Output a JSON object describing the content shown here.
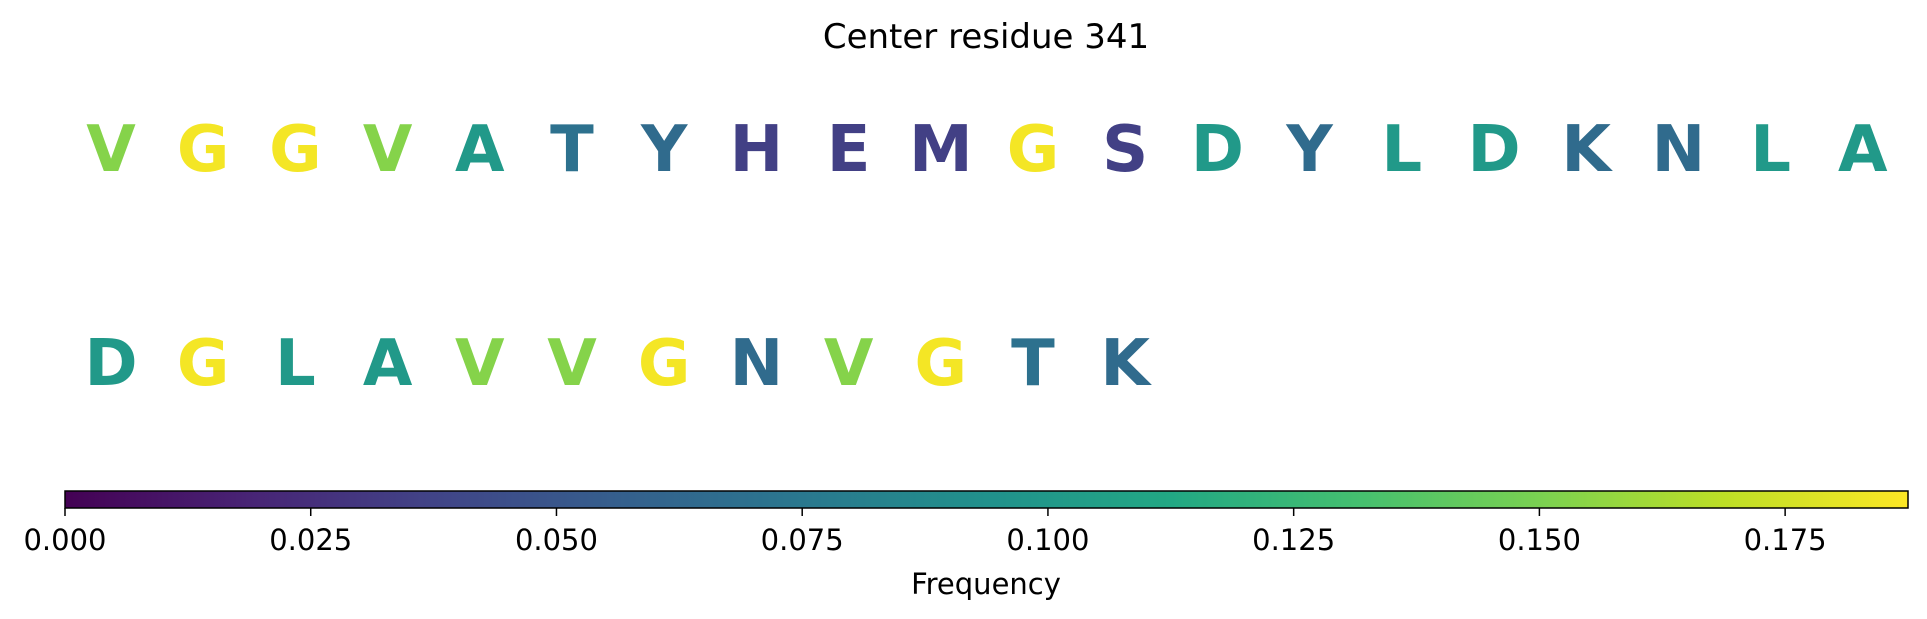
{
  "chart_data": {
    "type": "sequence-logo",
    "title": "Center residue 341",
    "colormap": "viridis",
    "rows": [
      [
        {
          "residue": "V",
          "frequency": 0.153
        },
        {
          "residue": "G",
          "frequency": 0.185
        },
        {
          "residue": "G",
          "frequency": 0.185
        },
        {
          "residue": "V",
          "frequency": 0.153
        },
        {
          "residue": "A",
          "frequency": 0.1
        },
        {
          "residue": "T",
          "frequency": 0.07
        },
        {
          "residue": "Y",
          "frequency": 0.065
        },
        {
          "residue": "H",
          "frequency": 0.035
        },
        {
          "residue": "E",
          "frequency": 0.035
        },
        {
          "residue": "M",
          "frequency": 0.035
        },
        {
          "residue": "G",
          "frequency": 0.185
        },
        {
          "residue": "S",
          "frequency": 0.035
        },
        {
          "residue": "D",
          "frequency": 0.1
        },
        {
          "residue": "Y",
          "frequency": 0.065
        },
        {
          "residue": "L",
          "frequency": 0.1
        },
        {
          "residue": "D",
          "frequency": 0.1
        },
        {
          "residue": "K",
          "frequency": 0.065
        },
        {
          "residue": "N",
          "frequency": 0.065
        },
        {
          "residue": "L",
          "frequency": 0.1
        },
        {
          "residue": "A",
          "frequency": 0.1
        }
      ],
      [
        {
          "residue": "D",
          "frequency": 0.1
        },
        {
          "residue": "G",
          "frequency": 0.185
        },
        {
          "residue": "L",
          "frequency": 0.1
        },
        {
          "residue": "A",
          "frequency": 0.1
        },
        {
          "residue": "V",
          "frequency": 0.153
        },
        {
          "residue": "V",
          "frequency": 0.153
        },
        {
          "residue": "G",
          "frequency": 0.185
        },
        {
          "residue": "N",
          "frequency": 0.065
        },
        {
          "residue": "V",
          "frequency": 0.153
        },
        {
          "residue": "G",
          "frequency": 0.185
        },
        {
          "residue": "T",
          "frequency": 0.07
        },
        {
          "residue": "K",
          "frequency": 0.065
        }
      ]
    ],
    "colorbar": {
      "label": "Frequency",
      "range": [
        0,
        0.1875
      ],
      "ticks": [
        0.0,
        0.025,
        0.05,
        0.075,
        0.1,
        0.125,
        0.15,
        0.175
      ],
      "tick_labels": [
        "0.000",
        "0.025",
        "0.050",
        "0.075",
        "0.100",
        "0.125",
        "0.150",
        "0.175"
      ],
      "orientation": "horizontal",
      "placement": "bottom"
    }
  }
}
